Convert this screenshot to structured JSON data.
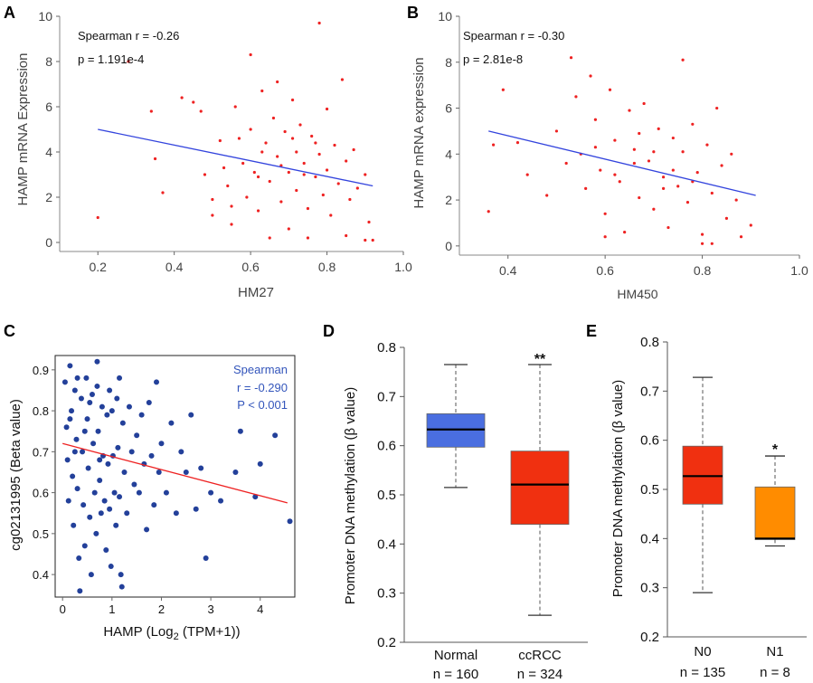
{
  "panels": {
    "A": {
      "letter": "A"
    },
    "B": {
      "letter": "B"
    },
    "C": {
      "letter": "C"
    },
    "D": {
      "letter": "D"
    },
    "E": {
      "letter": "E"
    }
  },
  "chart_data": [
    {
      "id": "A",
      "type": "scatter",
      "xlabel": "HM27",
      "ylabel": "HAMP mRNA Expression",
      "xlim": [
        0.1,
        1.0
      ],
      "ylim": [
        -0.4,
        10
      ],
      "xticks": [
        "0.2",
        "0.4",
        "0.6",
        "0.8",
        "1.0"
      ],
      "yticks": [
        "0",
        "2",
        "4",
        "6",
        "8",
        "10"
      ],
      "annotations": [
        "Spearman r = -0.26",
        "p = 1.191e-4"
      ],
      "point_color": "#ee2222",
      "line_color": "#3344dd",
      "trend_line": {
        "x": [
          0.2,
          0.92
        ],
        "y": [
          5.0,
          2.5
        ]
      },
      "points": [
        [
          0.2,
          1.1
        ],
        [
          0.28,
          8.0
        ],
        [
          0.34,
          5.8
        ],
        [
          0.35,
          3.7
        ],
        [
          0.37,
          2.2
        ],
        [
          0.42,
          6.4
        ],
        [
          0.45,
          6.2
        ],
        [
          0.47,
          5.8
        ],
        [
          0.48,
          3.0
        ],
        [
          0.5,
          1.9
        ],
        [
          0.52,
          4.5
        ],
        [
          0.53,
          3.3
        ],
        [
          0.54,
          2.5
        ],
        [
          0.55,
          1.6
        ],
        [
          0.56,
          6.0
        ],
        [
          0.57,
          4.6
        ],
        [
          0.58,
          3.5
        ],
        [
          0.59,
          2.0
        ],
        [
          0.6,
          8.3
        ],
        [
          0.6,
          5.0
        ],
        [
          0.61,
          3.1
        ],
        [
          0.62,
          1.4
        ],
        [
          0.63,
          6.7
        ],
        [
          0.64,
          4.4
        ],
        [
          0.65,
          2.7
        ],
        [
          0.66,
          5.5
        ],
        [
          0.67,
          3.8
        ],
        [
          0.67,
          7.1
        ],
        [
          0.68,
          1.8
        ],
        [
          0.69,
          4.9
        ],
        [
          0.7,
          3.1
        ],
        [
          0.7,
          0.6
        ],
        [
          0.71,
          6.3
        ],
        [
          0.72,
          4.0
        ],
        [
          0.72,
          2.3
        ],
        [
          0.73,
          5.2
        ],
        [
          0.74,
          3.5
        ],
        [
          0.75,
          1.5
        ],
        [
          0.76,
          4.7
        ],
        [
          0.77,
          2.9
        ],
        [
          0.78,
          9.7
        ],
        [
          0.78,
          3.9
        ],
        [
          0.79,
          2.1
        ],
        [
          0.8,
          5.9
        ],
        [
          0.8,
          3.2
        ],
        [
          0.81,
          1.2
        ],
        [
          0.82,
          4.3
        ],
        [
          0.83,
          2.6
        ],
        [
          0.84,
          7.2
        ],
        [
          0.85,
          3.6
        ],
        [
          0.86,
          1.9
        ],
        [
          0.87,
          4.1
        ],
        [
          0.88,
          2.4
        ],
        [
          0.9,
          3.0
        ],
        [
          0.91,
          0.9
        ],
        [
          0.92,
          0.1
        ],
        [
          0.9,
          0.1
        ],
        [
          0.85,
          0.3
        ],
        [
          0.75,
          0.2
        ],
        [
          0.65,
          0.2
        ],
        [
          0.55,
          0.8
        ],
        [
          0.5,
          1.2
        ],
        [
          0.62,
          2.9
        ],
        [
          0.68,
          3.4
        ],
        [
          0.74,
          3.0
        ],
        [
          0.77,
          4.4
        ],
        [
          0.71,
          4.6
        ],
        [
          0.63,
          4.0
        ]
      ]
    },
    {
      "id": "B",
      "type": "scatter",
      "xlabel": "HM450",
      "ylabel": "HAMP mRNA expression",
      "xlim": [
        0.3,
        1.0
      ],
      "ylim": [
        -0.4,
        10
      ],
      "xticks": [
        "0.4",
        "0.6",
        "0.8",
        "1.0"
      ],
      "yticks": [
        "0",
        "2",
        "4",
        "6",
        "8",
        "10"
      ],
      "annotations": [
        "Spearman r = -0.30",
        "p = 2.81e-8"
      ],
      "point_color": "#ee2222",
      "line_color": "#3344dd",
      "trend_line": {
        "x": [
          0.36,
          0.91
        ],
        "y": [
          5.0,
          2.2
        ]
      },
      "points": [
        [
          0.36,
          1.5
        ],
        [
          0.37,
          4.4
        ],
        [
          0.39,
          6.8
        ],
        [
          0.42,
          4.5
        ],
        [
          0.44,
          3.1
        ],
        [
          0.48,
          2.2
        ],
        [
          0.5,
          5.0
        ],
        [
          0.52,
          3.6
        ],
        [
          0.53,
          8.2
        ],
        [
          0.54,
          6.5
        ],
        [
          0.55,
          4.0
        ],
        [
          0.56,
          2.5
        ],
        [
          0.57,
          7.4
        ],
        [
          0.58,
          5.5
        ],
        [
          0.59,
          3.3
        ],
        [
          0.6,
          1.4
        ],
        [
          0.61,
          6.8
        ],
        [
          0.62,
          4.6
        ],
        [
          0.63,
          2.8
        ],
        [
          0.64,
          0.6
        ],
        [
          0.65,
          5.9
        ],
        [
          0.66,
          4.2
        ],
        [
          0.67,
          2.1
        ],
        [
          0.68,
          6.2
        ],
        [
          0.69,
          3.7
        ],
        [
          0.7,
          1.6
        ],
        [
          0.71,
          5.1
        ],
        [
          0.72,
          3.0
        ],
        [
          0.73,
          0.8
        ],
        [
          0.74,
          4.7
        ],
        [
          0.75,
          2.6
        ],
        [
          0.76,
          8.1
        ],
        [
          0.76,
          4.1
        ],
        [
          0.77,
          1.9
        ],
        [
          0.78,
          5.3
        ],
        [
          0.79,
          3.2
        ],
        [
          0.8,
          0.5
        ],
        [
          0.81,
          4.4
        ],
        [
          0.82,
          2.3
        ],
        [
          0.83,
          6.0
        ],
        [
          0.84,
          3.5
        ],
        [
          0.85,
          1.2
        ],
        [
          0.86,
          4.0
        ],
        [
          0.87,
          2.0
        ],
        [
          0.88,
          0.4
        ],
        [
          0.9,
          0.9
        ],
        [
          0.58,
          4.3
        ],
        [
          0.62,
          3.1
        ],
        [
          0.66,
          3.6
        ],
        [
          0.7,
          4.1
        ],
        [
          0.74,
          3.3
        ],
        [
          0.78,
          2.8
        ],
        [
          0.67,
          4.9
        ],
        [
          0.72,
          2.5
        ],
        [
          0.6,
          0.4
        ],
        [
          0.8,
          0.1
        ],
        [
          0.82,
          0.1
        ]
      ]
    },
    {
      "id": "C",
      "type": "scatter",
      "xlabel": "HAMP (Log2 (TPM+1))",
      "ylabel": "cg02131995 (Beta value)",
      "xlim": [
        -0.15,
        4.7
      ],
      "ylim": [
        0.345,
        0.935
      ],
      "xticks": [
        "0",
        "1",
        "2",
        "3",
        "4"
      ],
      "yticks": [
        "0.4",
        "0.5",
        "0.6",
        "0.7",
        "0.8",
        "0.9"
      ],
      "annotations": [
        "Spearman",
        "r = -0.290",
        "P < 0.001"
      ],
      "point_color": "#23409a",
      "line_color": "#ee2222",
      "annotation_color": "#3355bb",
      "trend_line": {
        "x": [
          0.0,
          4.55
        ],
        "y": [
          0.72,
          0.575
        ]
      },
      "points": [
        [
          0.05,
          0.87
        ],
        [
          0.08,
          0.76
        ],
        [
          0.1,
          0.68
        ],
        [
          0.12,
          0.58
        ],
        [
          0.15,
          0.91
        ],
        [
          0.18,
          0.8
        ],
        [
          0.2,
          0.64
        ],
        [
          0.22,
          0.52
        ],
        [
          0.25,
          0.85
        ],
        [
          0.28,
          0.73
        ],
        [
          0.3,
          0.61
        ],
        [
          0.33,
          0.44
        ],
        [
          0.35,
          0.36
        ],
        [
          0.38,
          0.83
        ],
        [
          0.4,
          0.7
        ],
        [
          0.42,
          0.57
        ],
        [
          0.45,
          0.47
        ],
        [
          0.48,
          0.88
        ],
        [
          0.5,
          0.78
        ],
        [
          0.52,
          0.66
        ],
        [
          0.55,
          0.54
        ],
        [
          0.58,
          0.4
        ],
        [
          0.6,
          0.84
        ],
        [
          0.62,
          0.72
        ],
        [
          0.65,
          0.6
        ],
        [
          0.68,
          0.5
        ],
        [
          0.7,
          0.86
        ],
        [
          0.72,
          0.75
        ],
        [
          0.75,
          0.63
        ],
        [
          0.78,
          0.55
        ],
        [
          0.8,
          0.81
        ],
        [
          0.82,
          0.69
        ],
        [
          0.85,
          0.58
        ],
        [
          0.88,
          0.46
        ],
        [
          0.9,
          0.79
        ],
        [
          0.92,
          0.67
        ],
        [
          0.95,
          0.56
        ],
        [
          0.98,
          0.42
        ],
        [
          1.0,
          0.8
        ],
        [
          1.02,
          0.69
        ],
        [
          1.05,
          0.6
        ],
        [
          1.08,
          0.52
        ],
        [
          1.1,
          0.83
        ],
        [
          1.12,
          0.71
        ],
        [
          1.15,
          0.59
        ],
        [
          1.18,
          0.4
        ],
        [
          1.2,
          0.37
        ],
        [
          1.22,
          0.77
        ],
        [
          1.25,
          0.65
        ],
        [
          1.3,
          0.55
        ],
        [
          1.35,
          0.81
        ],
        [
          1.4,
          0.7
        ],
        [
          1.45,
          0.62
        ],
        [
          1.5,
          0.74
        ],
        [
          1.55,
          0.6
        ],
        [
          1.6,
          0.79
        ],
        [
          1.65,
          0.67
        ],
        [
          1.7,
          0.51
        ],
        [
          1.75,
          0.82
        ],
        [
          1.8,
          0.69
        ],
        [
          1.85,
          0.57
        ],
        [
          1.9,
          0.87
        ],
        [
          1.95,
          0.65
        ],
        [
          2.0,
          0.72
        ],
        [
          2.1,
          0.6
        ],
        [
          2.2,
          0.77
        ],
        [
          2.3,
          0.55
        ],
        [
          2.4,
          0.7
        ],
        [
          2.5,
          0.65
        ],
        [
          2.6,
          0.79
        ],
        [
          2.7,
          0.56
        ],
        [
          2.8,
          0.66
        ],
        [
          2.9,
          0.44
        ],
        [
          3.0,
          0.6
        ],
        [
          3.2,
          0.58
        ],
        [
          3.5,
          0.65
        ],
        [
          3.6,
          0.75
        ],
        [
          3.9,
          0.59
        ],
        [
          4.0,
          0.67
        ],
        [
          4.3,
          0.74
        ],
        [
          4.6,
          0.53
        ],
        [
          0.3,
          0.88
        ],
        [
          0.7,
          0.92
        ],
        [
          0.15,
          0.78
        ],
        [
          0.45,
          0.75
        ],
        [
          0.95,
          0.85
        ],
        [
          1.15,
          0.88
        ],
        [
          0.55,
          0.82
        ],
        [
          0.25,
          0.7
        ],
        [
          0.75,
          0.68
        ]
      ]
    },
    {
      "id": "D",
      "type": "box",
      "ylabel": "Promoter DNA methylation (β value)",
      "ylim": [
        0.2,
        0.8
      ],
      "yticks": [
        "0.2",
        "0.3",
        "0.4",
        "0.5",
        "0.6",
        "0.7",
        "0.8"
      ],
      "categories": [
        "Normal",
        "ccRCC"
      ],
      "n_labels": [
        "n = 160",
        "n = 324"
      ],
      "significance": [
        "",
        "**"
      ],
      "colors": [
        "#4a6ee0",
        "#f03010"
      ],
      "boxes": [
        {
          "min": 0.515,
          "q1": 0.597,
          "median": 0.633,
          "q3": 0.665,
          "max": 0.765
        },
        {
          "min": 0.255,
          "q1": 0.44,
          "median": 0.521,
          "q3": 0.589,
          "max": 0.765
        }
      ]
    },
    {
      "id": "E",
      "type": "box",
      "ylabel": "Promoter DNA methylation (β value)",
      "ylim": [
        0.2,
        0.8
      ],
      "yticks": [
        "0.2",
        "0.3",
        "0.4",
        "0.5",
        "0.6",
        "0.7",
        "0.8"
      ],
      "categories": [
        "N0",
        "N1"
      ],
      "n_labels": [
        "n = 135",
        "n = 8"
      ],
      "significance": [
        "",
        "*"
      ],
      "colors": [
        "#f03010",
        "#ff8c00"
      ],
      "boxes": [
        {
          "min": 0.29,
          "q1": 0.47,
          "median": 0.527,
          "q3": 0.588,
          "max": 0.728
        },
        {
          "min": 0.385,
          "q1": 0.398,
          "median": 0.4,
          "q3": 0.505,
          "max": 0.568
        }
      ]
    }
  ]
}
